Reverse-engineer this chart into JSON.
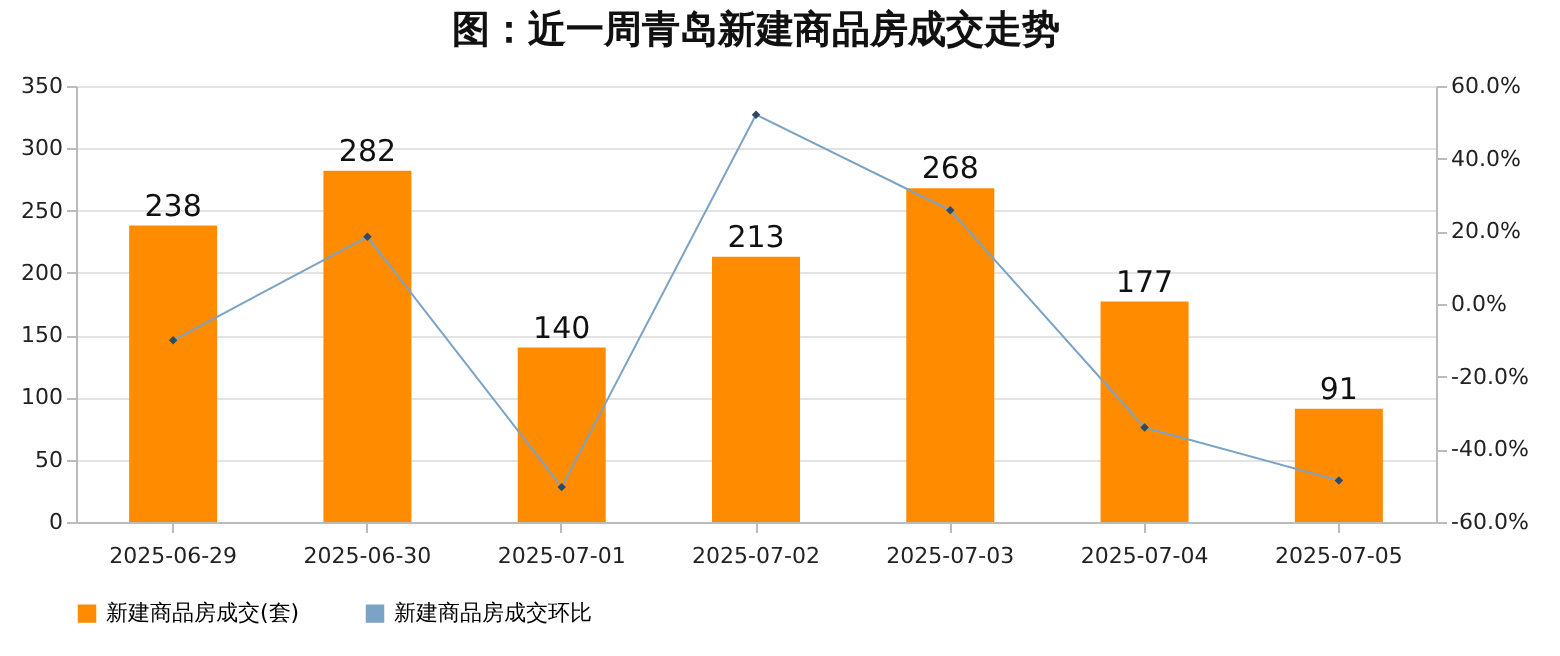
{
  "chart_data": {
    "type": "bar",
    "title": "图：近一周青岛新建商品房成交走势",
    "categories": [
      "2025-06-29",
      "2025-06-30",
      "2025-07-01",
      "2025-07-02",
      "2025-07-03",
      "2025-07-04",
      "2025-07-05"
    ],
    "series": [
      {
        "name": "新建商品房成交(套)",
        "color": "#ff8c00",
        "values": [
          238,
          282,
          140,
          213,
          268,
          177,
          91
        ],
        "value_labels": [
          "238",
          "282",
          "140",
          "213",
          "268",
          "177",
          "91"
        ]
      },
      {
        "name": "新建商品房成交环比",
        "type": "line",
        "axis": "y2",
        "color": "#7ba3c6",
        "marker": "diamond",
        "values": [
          -10,
          18.5,
          -50.4,
          52.1,
          25.8,
          -34.0,
          -48.6
        ]
      }
    ],
    "ylim": [
      0,
      350
    ],
    "yticks": [
      0,
      50,
      100,
      150,
      200,
      250,
      300,
      350
    ],
    "y2lim": [
      -60,
      60
    ],
    "y2ticks": [
      {
        "value": -60,
        "label": "-60.0%"
      },
      {
        "value": -40,
        "label": "-40.0%"
      },
      {
        "value": -20,
        "label": "-20.0%"
      },
      {
        "value": 0,
        "label": "0.0%"
      },
      {
        "value": 20,
        "label": "20.0%"
      },
      {
        "value": 40,
        "label": "40.0%"
      },
      {
        "value": 60,
        "label": "60.0%"
      }
    ],
    "grid": "y",
    "legend": "bottom"
  }
}
